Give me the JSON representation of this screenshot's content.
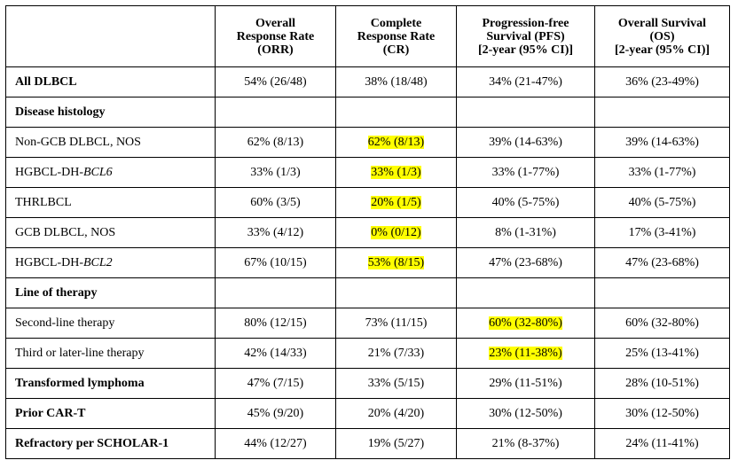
{
  "header": {
    "blank": "",
    "orr": [
      "Overall",
      "Response Rate",
      "(ORR)"
    ],
    "cr": [
      "Complete",
      "Response Rate",
      "(CR)"
    ],
    "pfs": [
      "Progression-free",
      "Survival (PFS)",
      "[2-year (95% CI)]"
    ],
    "os": [
      "Overall Survival",
      "(OS)",
      "[2-year (95% CI)]"
    ]
  },
  "rows": [
    {
      "label": "All DLBCL",
      "label_suffix": "",
      "bold": true,
      "section": false,
      "orr": "54% (26/48)",
      "cr": "38% (18/48)",
      "pfs": "34% (21-47%)",
      "os": "36% (23-49%)",
      "hl": []
    },
    {
      "label": "Disease histology",
      "label_suffix": "",
      "bold": true,
      "section": true,
      "orr": "",
      "cr": "",
      "pfs": "",
      "os": "",
      "hl": []
    },
    {
      "label": "Non-GCB DLBCL, NOS",
      "label_suffix": "",
      "bold": false,
      "section": false,
      "orr": "62% (8/13)",
      "cr": "62% (8/13)",
      "pfs": "39% (14-63%)",
      "os": "39% (14-63%)",
      "hl": [
        "cr"
      ]
    },
    {
      "label": "HGBCL-DH-",
      "label_suffix": "BCL6",
      "bold": false,
      "section": false,
      "orr": "33% (1/3)",
      "cr": "33% (1/3)",
      "pfs": "33% (1-77%)",
      "os": "33% (1-77%)",
      "hl": [
        "cr"
      ]
    },
    {
      "label": "THRLBCL",
      "label_suffix": "",
      "bold": false,
      "section": false,
      "orr": "60% (3/5)",
      "cr": "20% (1/5)",
      "pfs": "40% (5-75%)",
      "os": "40% (5-75%)",
      "hl": [
        "cr"
      ]
    },
    {
      "label": "GCB DLBCL, NOS",
      "label_suffix": "",
      "bold": false,
      "section": false,
      "orr": "33% (4/12)",
      "cr": "0% (0/12)",
      "pfs": "8% (1-31%)",
      "os": "17% (3-41%)",
      "hl": [
        "cr"
      ]
    },
    {
      "label": "HGBCL-DH-",
      "label_suffix": "BCL2",
      "bold": false,
      "section": false,
      "orr": "67% (10/15)",
      "cr": "53% (8/15)",
      "pfs": "47% (23-68%)",
      "os": "47% (23-68%)",
      "hl": [
        "cr"
      ]
    },
    {
      "label": "Line of therapy",
      "label_suffix": "",
      "bold": true,
      "section": true,
      "orr": "",
      "cr": "",
      "pfs": "",
      "os": "",
      "hl": []
    },
    {
      "label": "Second-line therapy",
      "label_suffix": "",
      "bold": false,
      "section": false,
      "orr": "80% (12/15)",
      "cr": "73% (11/15)",
      "pfs": "60% (32-80%)",
      "os": "60% (32-80%)",
      "hl": [
        "pfs"
      ]
    },
    {
      "label": "Third or later-line therapy",
      "label_suffix": "",
      "bold": false,
      "section": false,
      "orr": "42% (14/33)",
      "cr": "21% (7/33)",
      "pfs": "23% (11-38%)",
      "os": "25% (13-41%)",
      "hl": [
        "pfs"
      ]
    },
    {
      "label": "Transformed lymphoma",
      "label_suffix": "",
      "bold": true,
      "section": false,
      "orr": "47% (7/15)",
      "cr": "33% (5/15)",
      "pfs": "29% (11-51%)",
      "os": "28% (10-51%)",
      "hl": []
    },
    {
      "label": "Prior CAR-T",
      "label_suffix": "",
      "bold": true,
      "section": false,
      "orr": "45% (9/20)",
      "cr": "20% (4/20)",
      "pfs": "30% (12-50%)",
      "os": "30% (12-50%)",
      "hl": []
    },
    {
      "label": "Refractory per SCHOLAR-1",
      "label_suffix": "",
      "bold": true,
      "section": false,
      "orr": "44% (12/27)",
      "cr": "19% (5/27)",
      "pfs": "21% (8-37%)",
      "os": "24% (11-41%)",
      "hl": []
    }
  ],
  "colors": {
    "highlight": "#ffff00",
    "border": "#000000",
    "text": "#000000"
  }
}
